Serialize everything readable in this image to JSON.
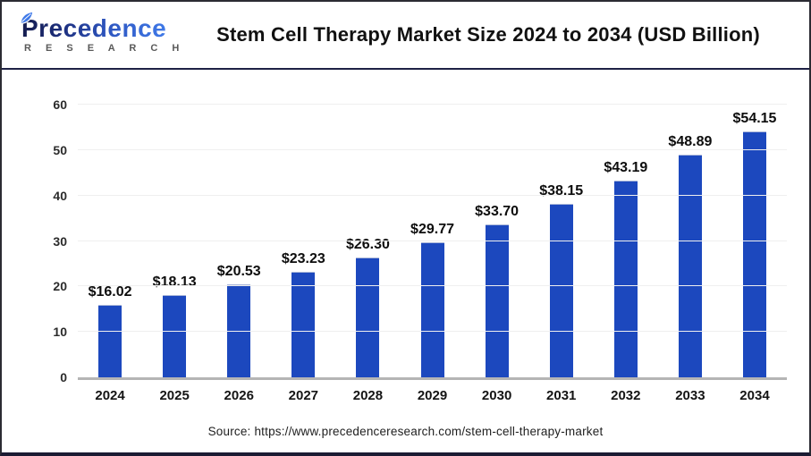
{
  "header": {
    "logo": {
      "brand": "Precedence",
      "sub": "R E S E A R C H",
      "leaf_icon": "leaf-icon",
      "brand_color_dark": "#141c4e",
      "brand_color_light": "#3f79e8",
      "sub_color": "#595959"
    },
    "title": "Stem Cell Therapy Market Size 2024 to 2034 (USD Billion)"
  },
  "chart_data": {
    "type": "bar",
    "title": "Stem Cell Therapy Market Size 2024 to 2034 (USD Billion)",
    "categories": [
      "2024",
      "2025",
      "2026",
      "2027",
      "2028",
      "2029",
      "2030",
      "2031",
      "2032",
      "2033",
      "2034"
    ],
    "values": [
      16.02,
      18.13,
      20.53,
      23.23,
      26.3,
      29.77,
      33.7,
      38.15,
      43.19,
      48.89,
      54.15
    ],
    "value_labels": [
      "$16.02",
      "$18.13",
      "$20.53",
      "$23.23",
      "$26.30",
      "$29.77",
      "$33.70",
      "$38.15",
      "$43.19",
      "$48.89",
      "$54.15"
    ],
    "xlabel": "",
    "ylabel": "",
    "ylim": [
      0,
      60
    ],
    "yticks": [
      0,
      10,
      20,
      30,
      40,
      50,
      60
    ],
    "grid": true,
    "legend": "none",
    "bar_color": "#1c48be",
    "bar_top_edge_color": "#a9b6d8",
    "gridline_color": "#efefef",
    "axis_line_color": "#b5b5b5"
  },
  "footer": {
    "source": "Source: https://www.precedenceresearch.com/stem-cell-therapy-market"
  }
}
